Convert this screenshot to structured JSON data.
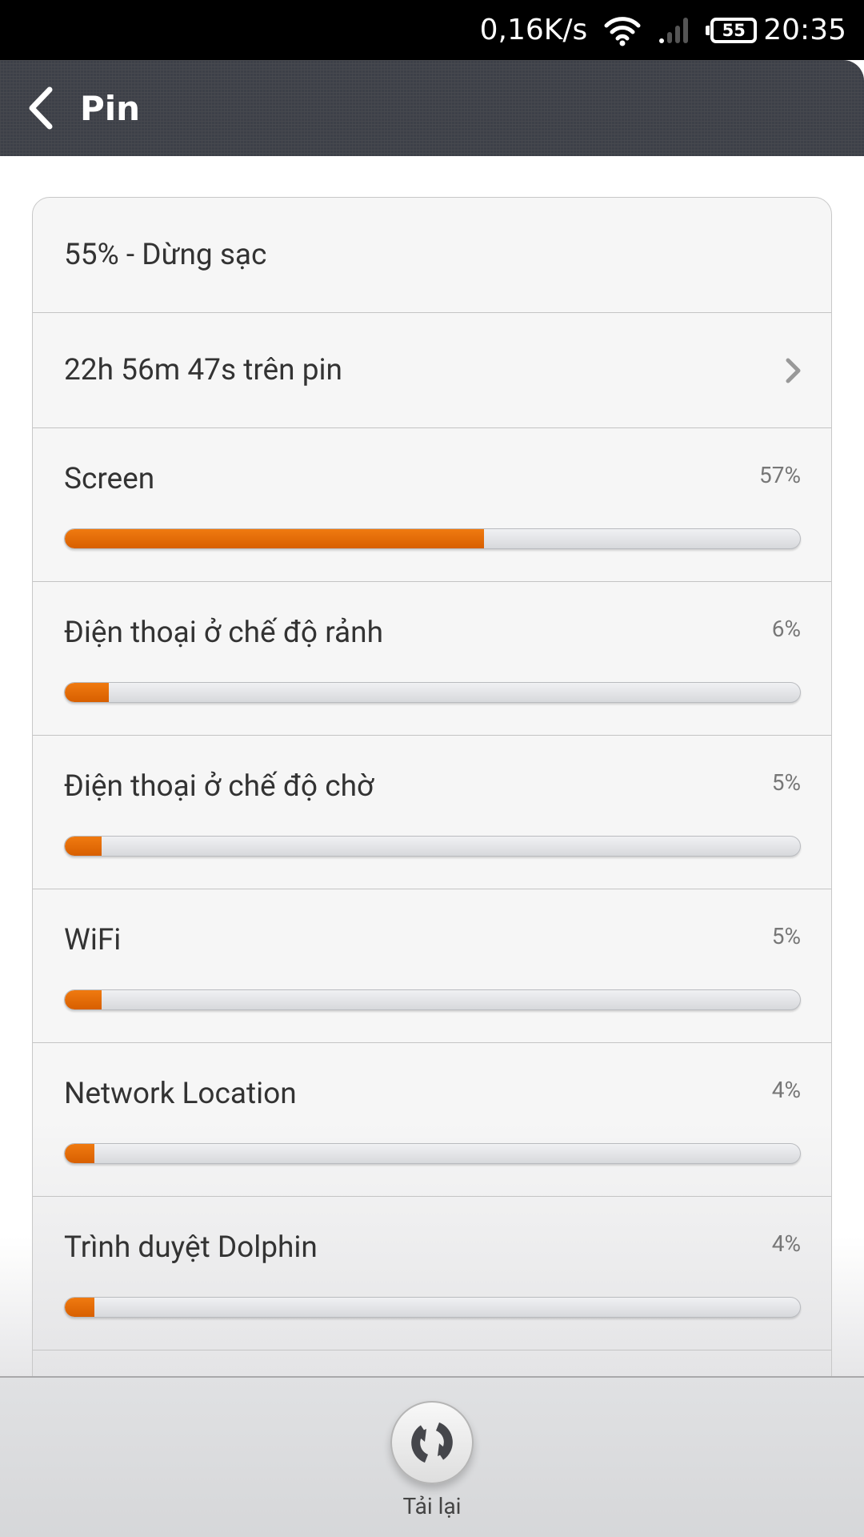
{
  "status_bar": {
    "net_speed": "0,16K/s",
    "battery_level": "55",
    "time": "20:35"
  },
  "header": {
    "title": "Pin"
  },
  "summary": {
    "battery_state": "55% - Dừng sạc",
    "on_battery": "22h 56m 47s trên pin"
  },
  "usage": [
    {
      "name": "Screen",
      "percent_label": "57%",
      "percent": 57
    },
    {
      "name": "Điện thoại ở chế độ rảnh",
      "percent_label": "6%",
      "percent": 6
    },
    {
      "name": "Điện thoại ở chế độ chờ",
      "percent_label": "5%",
      "percent": 5
    },
    {
      "name": "WiFi",
      "percent_label": "5%",
      "percent": 5
    },
    {
      "name": "Network Location",
      "percent_label": "4%",
      "percent": 4
    },
    {
      "name": "Trình duyệt Dolphin",
      "percent_label": "4%",
      "percent": 4
    }
  ],
  "bottom": {
    "reload_label": "Tải lại"
  },
  "colors": {
    "accent": "#e36a05",
    "header": "#3d4048"
  }
}
